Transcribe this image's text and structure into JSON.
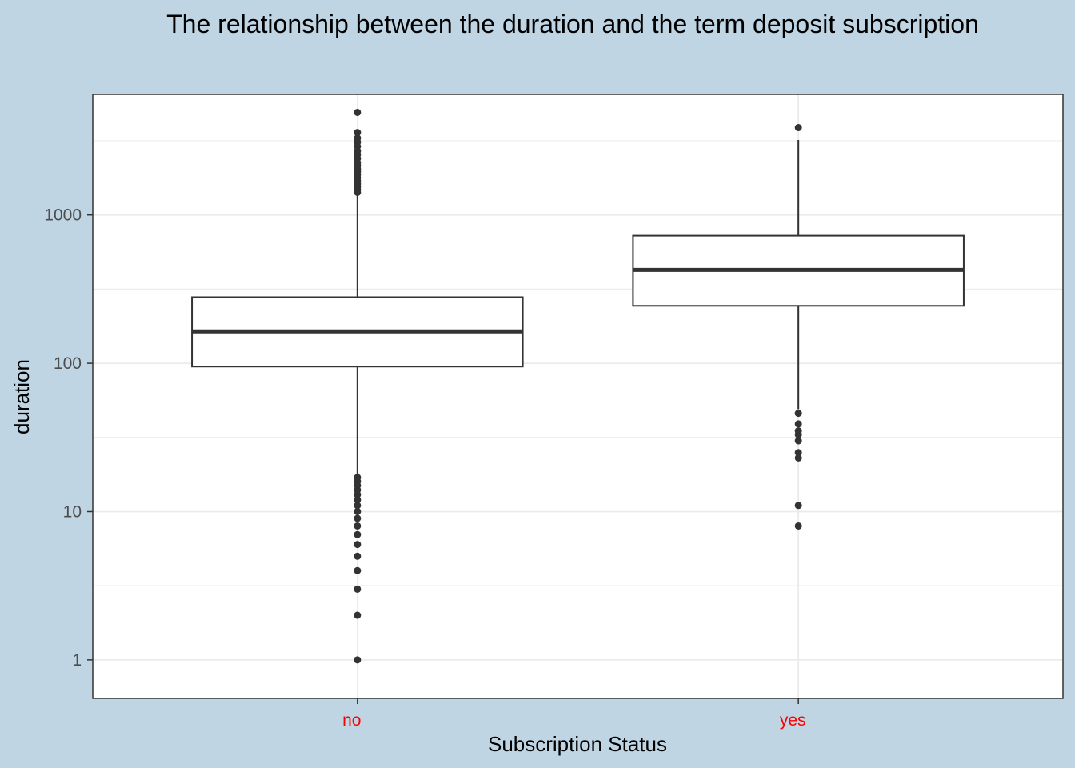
{
  "chart_data": {
    "type": "box",
    "title": "The relationship between the duration and the term deposit subscription",
    "xlabel": "Subscription Status",
    "ylabel": "duration",
    "y_scale": "log10",
    "y_ticks": [
      1,
      10,
      100,
      1000
    ],
    "y_tick_labels": [
      "1",
      "10",
      "100",
      "1000"
    ],
    "ylim": [
      0.55,
      6500
    ],
    "grid": true,
    "colors": {
      "background": "#bfd5e3",
      "panel": "#ffffff",
      "grid": "#ebebeb",
      "box_line": "#333333",
      "x_tick_label": "#ff0000",
      "y_tick_label": "#4d4d4d"
    },
    "categories": [
      "no",
      "yes"
    ],
    "boxes": [
      {
        "category": "no",
        "q1": 95,
        "median": 164,
        "q3": 279,
        "whisker_low": 18,
        "whisker_high": 1380,
        "outliers": [
          1,
          2,
          3,
          4,
          5,
          6,
          7,
          8,
          9,
          10,
          11,
          12,
          13,
          14,
          15,
          16,
          17,
          1420,
          1480,
          1550,
          1620,
          1700,
          1780,
          1870,
          1960,
          2050,
          2150,
          2250,
          2400,
          2550,
          2700,
          2900,
          3100,
          3300,
          3600,
          4918
        ]
      },
      {
        "category": "yes",
        "q1": 244,
        "median": 426,
        "q3": 725,
        "whisker_low": 49,
        "whisker_high": 3200,
        "outliers": [
          8,
          11,
          23,
          25,
          30,
          33,
          35,
          39,
          46,
          3881
        ]
      }
    ]
  }
}
